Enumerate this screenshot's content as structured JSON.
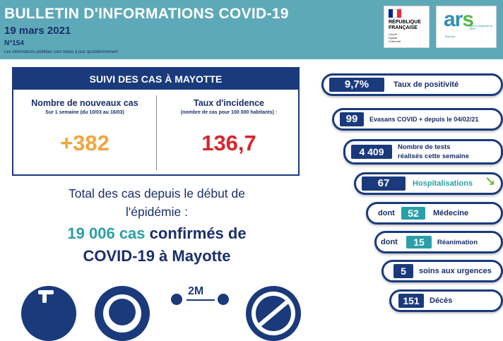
{
  "header": {
    "title": "BULLETIN D'INFORMATIONS COVID-19",
    "date": "19 mars 2021",
    "number": "N°154",
    "note": "Les informations publiées sont mises à jour quotidiennement"
  },
  "logos": {
    "republique_line1": "RÉPUBLIQUE",
    "republique_line2": "FRANÇAISE",
    "motto_line1": "Liberté",
    "motto_line2": "Égalité",
    "motto_line3": "Fraternité",
    "ars_word_left": "ar",
    "ars_word_right": "s",
    "ars_subtitle": "Agence Régionale de Santé",
    "ars_region": "Mayotte"
  },
  "suivi": {
    "heading": "SUIVI DES CAS À MAYOTTE",
    "new_cases_title": "Nombre de nouveaux cas",
    "new_cases_sub": "Sur 1 semaine (du 10/03 au 16/03)",
    "new_cases_value": "+382",
    "incidence_title": "Taux d'incidence",
    "incidence_sub": "(nombre de cas pour 100 000 habitants) :",
    "incidence_value": "136,7"
  },
  "total": {
    "line1": "Total des cas depuis le début de",
    "line2": "l'épidémie :",
    "count": "19 006 cas",
    "confirmed": " confirmés de",
    "line4": "COVID-19 à Mayotte"
  },
  "distance_label": "2M",
  "indicators": {
    "positivity_value": "9,7%",
    "positivity_label": "Taux de positivité",
    "evasans_value": "99",
    "evasans_label": "Evasans COVID + depuis le 04/02/21",
    "tests_value": "4 409",
    "tests_label_line1": "Nombre de tests",
    "tests_label_line2": "réalisés cette semaine",
    "hosp_value": "67",
    "hosp_label": "Hospitalisations",
    "medecine_prefix": "dont",
    "medecine_value": "52",
    "medecine_label": "Médecine",
    "rea_prefix": "dont",
    "rea_value": "15",
    "rea_label": "Réanimation",
    "urgences_value": "5",
    "urgences_label": "soins aux urgences",
    "deces_value": "151",
    "deces_label": "Décès"
  },
  "colors": {
    "navy": "#1a3a7c",
    "teal": "#2a9fa8",
    "header_teal": "#5ea9b8",
    "orange": "#f0a63c",
    "red": "#d8262c",
    "green_arrow": "#6cbb3c"
  }
}
